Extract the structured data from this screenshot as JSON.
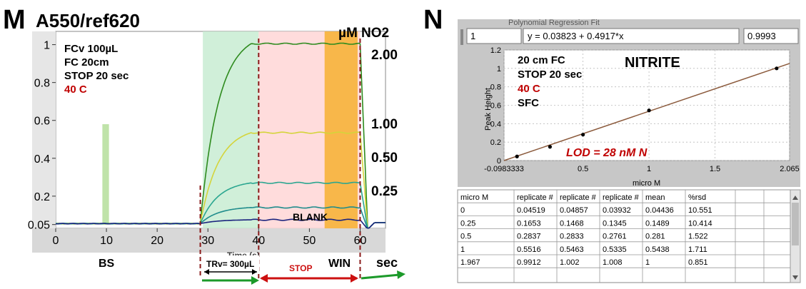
{
  "panel_m": {
    "letter": "M",
    "title": "A550/ref620",
    "unit": "µM NO2",
    "conditions": [
      {
        "text": "FCv 100µL",
        "color": "#000000"
      },
      {
        "text": "FC 20cm",
        "color": "#000000"
      },
      {
        "text": "STOP 20 sec",
        "color": "#000000"
      },
      {
        "text": "40 C",
        "color": "#c00000"
      }
    ],
    "concentration_labels": [
      "2.00",
      "1.00",
      "0.50",
      "0.25",
      "BLANK"
    ],
    "region_labels": {
      "bs": "BS",
      "win": "WIN",
      "sec": "sec",
      "trv": "TRv= 300µL",
      "stop": "STOP",
      "cut_label": "Time (s)"
    },
    "colors": {
      "bs": "#b8e0a0",
      "tr": "#c8ecd2",
      "stop": "#ffd6d6",
      "win": "#f7b23a",
      "dash": "#8b1a1a",
      "arrow_green": "#1c9a2a",
      "arrow_red": "#cc1010"
    }
  },
  "panel_n": {
    "letter": "N",
    "header_cut": "Polynomial Regression Fit",
    "order": "1",
    "equation": "y = 0.03823 + 0.4917*x",
    "r_value": "0.9993",
    "title": "NITRITE",
    "conditions": [
      {
        "text": "20 cm  FC",
        "color": "#000000"
      },
      {
        "text": "STOP 20 sec",
        "color": "#000000"
      },
      {
        "text": "40 C",
        "color": "#c00000"
      },
      {
        "text": "SFC",
        "color": "#000000"
      }
    ],
    "lod": "LOD = 28 nM N",
    "table": {
      "headers": [
        "micro M",
        "replicate #",
        "replicate #",
        "replicate #",
        "mean",
        "%rsd"
      ],
      "rows": [
        [
          "0",
          "0.04519",
          "0.04857",
          "0.03932",
          "0.04436",
          "10.551"
        ],
        [
          "0.25",
          "0.1653",
          "0.1468",
          "0.1345",
          "0.1489",
          "10.414"
        ],
        [
          "0.5",
          "0.2837",
          "0.2833",
          "0.2761",
          "0.281",
          "1.522"
        ],
        [
          "1",
          "0.5516",
          "0.5463",
          "0.5335",
          "0.5438",
          "1.711"
        ],
        [
          "1.967",
          "0.9912",
          "1.002",
          "1.008",
          "1",
          "0.851"
        ]
      ]
    }
  },
  "chart_data": [
    {
      "type": "line",
      "title": "A550/ref620",
      "xlabel": "",
      "ylabel": "",
      "xlim": [
        0,
        65
      ],
      "ylim": [
        0.03,
        1.07
      ],
      "x_ticks": [
        "0",
        "10",
        "20",
        "30",
        "40",
        "50",
        "60"
      ],
      "y_ticks": [
        {
          "v": 1,
          "label": "1"
        },
        {
          "v": 0.8,
          "label": "0.8"
        },
        {
          "v": 0.6,
          "label": "0.6"
        },
        {
          "v": 0.4,
          "label": "0.4"
        },
        {
          "v": 0.2,
          "label": "0.2"
        },
        {
          "v": 0.05,
          "label": "0.05"
        }
      ],
      "regions": [
        {
          "name": "BS",
          "x": [
            9.2,
            10.5
          ],
          "y": [
            0.05,
            0.58
          ]
        },
        {
          "name": "TR",
          "x": [
            29,
            40
          ]
        },
        {
          "name": "STOP",
          "x": [
            40,
            60
          ]
        },
        {
          "name": "WIN",
          "x": [
            53,
            59.5
          ]
        }
      ],
      "dashed_lines_x": [
        28.5,
        40,
        60
      ],
      "series": [
        {
          "label": "2.00",
          "color": "#2e8b1e",
          "baseline": 0.055,
          "plateau": 1.005
        },
        {
          "label": "1.00",
          "color": "#d4d43a",
          "baseline": 0.055,
          "plateau": 0.535
        },
        {
          "label": "0.50",
          "color": "#2aa690",
          "baseline": 0.055,
          "plateau": 0.27
        },
        {
          "label": "0.25",
          "color": "#1f8c8c",
          "baseline": 0.055,
          "plateau": 0.14
        },
        {
          "label": "BLANK",
          "color": "#1a237e",
          "baseline": 0.055,
          "plateau": 0.075
        }
      ]
    },
    {
      "type": "scatter",
      "title": "NITRITE",
      "xlabel": "micro M",
      "ylabel": "Peak Height",
      "xlim": [
        -0.0983333,
        2.065
      ],
      "ylim": [
        0,
        1.2
      ],
      "x_ticks": [
        "-0.0983333",
        "0.5",
        "1",
        "1.5",
        "2.065"
      ],
      "y_ticks": [
        "0",
        "0.2",
        "0.4",
        "0.6",
        "0.8",
        "1",
        "1.2"
      ],
      "points": [
        [
          0,
          0.04436
        ],
        [
          0.25,
          0.1489
        ],
        [
          0.5,
          0.281
        ],
        [
          1,
          0.5438
        ],
        [
          1.967,
          1
        ]
      ],
      "fit": {
        "intercept": 0.03823,
        "slope": 0.4917,
        "color": "#8b5a3c"
      }
    }
  ]
}
